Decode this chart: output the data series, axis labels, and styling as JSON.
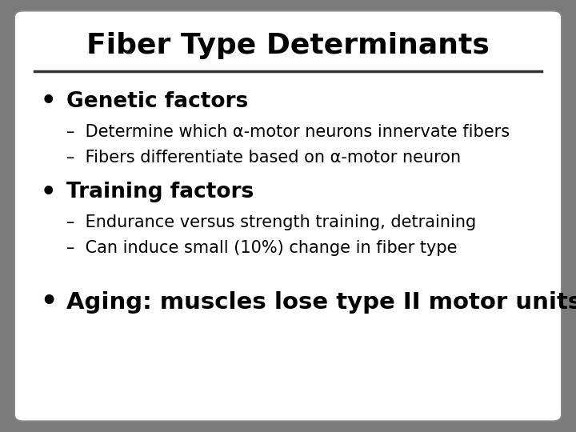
{
  "title": "Fiber Type Determinants",
  "title_fontsize": 26,
  "title_fontweight": "bold",
  "background_color": "#ffffff",
  "outer_bg_color": "#7a7a7a",
  "border_color": "#888888",
  "text_color": "#000000",
  "divider_color": "#333333",
  "bullet1_header": "Genetic factors",
  "bullet1_sub1": "Determine which α-motor neurons innervate fibers",
  "bullet1_sub2": "Fibers differentiate based on α-motor neuron",
  "bullet2_header": "Training factors",
  "bullet2_sub1": "Endurance versus strength training, detraining",
  "bullet2_sub2": "Can induce small (10%) change in fiber type",
  "bullet3_header": "Aging: muscles lose type II motor units",
  "header_fontsize": 19,
  "header_fontweight": "bold",
  "sub_fontsize": 15,
  "sub_fontweight": "normal",
  "bullet3_fontsize": 21,
  "bullet3_fontweight": "bold"
}
